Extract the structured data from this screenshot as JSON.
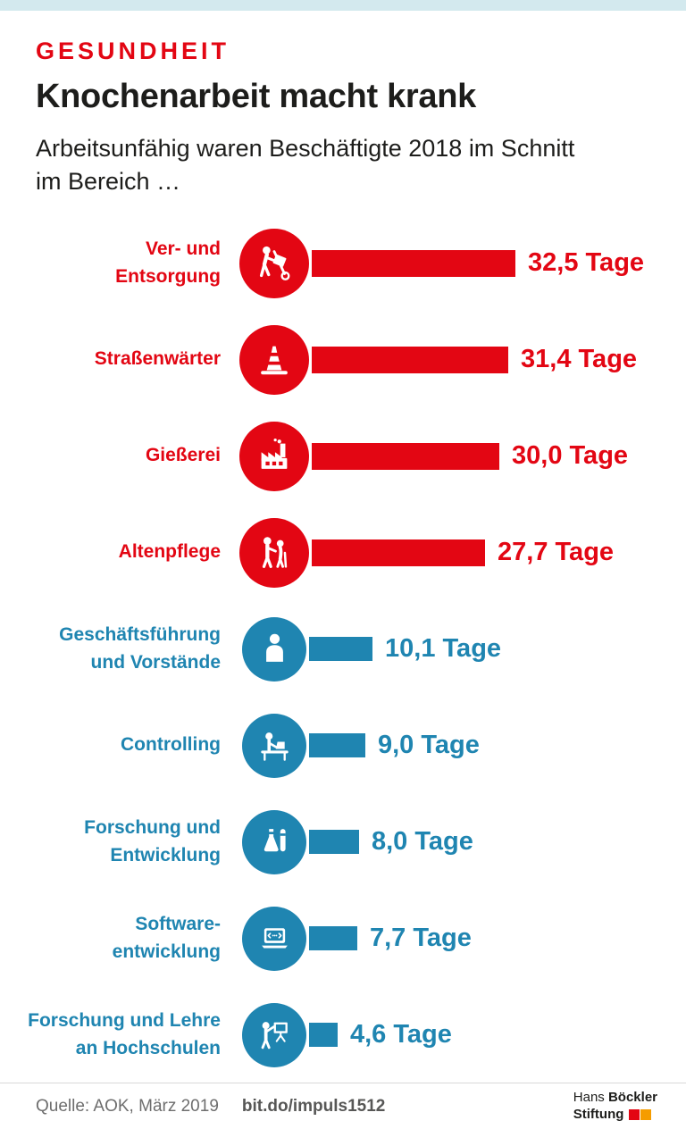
{
  "page": {
    "kicker": "GESUNDHEIT",
    "title": "Knochenarbeit macht krank",
    "subtitle": "Arbeitsunfähig waren Beschäftigte 2018 im Schnitt\nim Bereich …"
  },
  "colors": {
    "red": "#e30613",
    "blue": "#1f85b1",
    "top_strip": "#d3e9ee",
    "footer_text": "#6e6e6e",
    "logo_square_red": "#e30613",
    "logo_square_orange": "#f59c00"
  },
  "chart_data": {
    "type": "bar",
    "orientation": "horizontal",
    "unit": "Tage",
    "xlim": [
      0,
      35
    ],
    "legend": "none",
    "rows": [
      {
        "label": "Ver- und\nEntsorgung",
        "value": 32.5,
        "value_label": "32,5 Tage",
        "color": "red",
        "icon": "hand-truck-worker-icon"
      },
      {
        "label": "Straßenwärter",
        "value": 31.4,
        "value_label": "31,4 Tage",
        "color": "red",
        "icon": "traffic-cone-icon"
      },
      {
        "label": "Gießerei",
        "value": 30.0,
        "value_label": "30,0 Tage",
        "color": "red",
        "icon": "factory-icon"
      },
      {
        "label": "Altenpflege",
        "value": 27.7,
        "value_label": "27,7 Tage",
        "color": "red",
        "icon": "elder-care-icon"
      },
      {
        "label": "Geschäftsführung\nund Vorstände",
        "value": 10.1,
        "value_label": "10,1 Tage",
        "color": "blue",
        "icon": "businessperson-icon"
      },
      {
        "label": "Controlling",
        "value": 9.0,
        "value_label": "9,0 Tage",
        "color": "blue",
        "icon": "desk-worker-icon"
      },
      {
        "label": "Forschung und\nEntwicklung",
        "value": 8.0,
        "value_label": "8,0 Tage",
        "color": "blue",
        "icon": "lab-flasks-icon"
      },
      {
        "label": "Software-\nentwicklung",
        "value": 7.7,
        "value_label": "7,7 Tage",
        "color": "blue",
        "icon": "laptop-code-icon"
      },
      {
        "label": "Forschung und Lehre\nan Hochschulen",
        "value": 4.6,
        "value_label": "4,6 Tage",
        "color": "blue",
        "icon": "teacher-board-icon"
      }
    ]
  },
  "footer": {
    "source": "Quelle: AOK, März 2019",
    "link": "bit.do/impuls1512",
    "logo": {
      "top_regular": "Hans",
      "top_bold": "Böckler",
      "bottom_bold": "Stiftung"
    }
  }
}
